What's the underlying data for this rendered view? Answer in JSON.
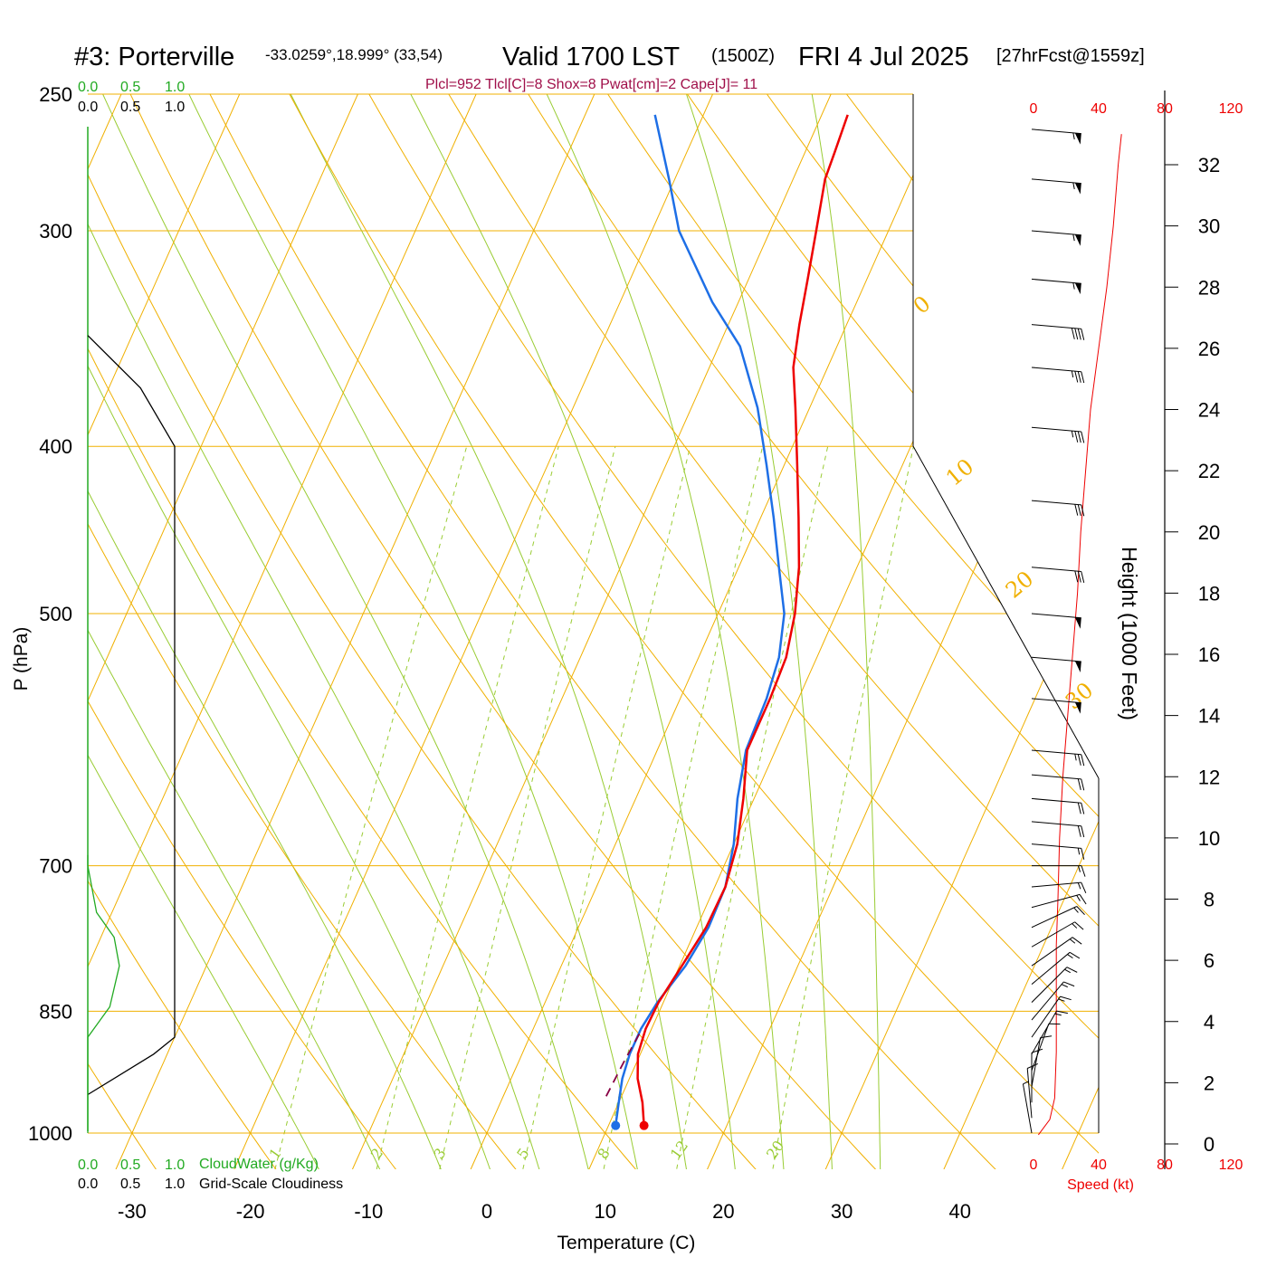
{
  "header": {
    "station": "#3: Porterville",
    "coords": "-33.0259°,18.999° (33,54)",
    "valid": "Valid 1700 LST",
    "utc": "(1500Z)",
    "date": "FRI 4 Jul 2025",
    "forecast": "[27hrFcst@1559z]"
  },
  "indices": "Plcl=952 Tlcl[C]=8 Shox=8 Pwat[cm]=2 Cape[J]= 11",
  "colors": {
    "isotherm": "#f0b000",
    "dry_adiabat": "#f0b000",
    "moist_adiabat": "#99cc33",
    "mixing_ratio": "#99cc33",
    "temperature": "#ee0000",
    "dewpoint": "#1e6fe6",
    "parcel": "#880044",
    "cloud_water": "#22aa22",
    "cloudiness": "#000000",
    "speed": "#ee0000"
  },
  "cloud_scale": {
    "cloudwater_ticks": [
      "0.0",
      "0.5",
      "1.0"
    ],
    "cloudiness_ticks": [
      "0.0",
      "0.5",
      "1.0"
    ],
    "cloudwater_label": "CloudWater (g/Kg)",
    "cloudiness_label": "Grid-Scale Cloudiness"
  },
  "speed_scale": {
    "ticks": [
      "0",
      "40",
      "80",
      "120"
    ],
    "label": "Speed (kt)"
  },
  "chart_data": {
    "type": "skew-t log-p sounding",
    "xlabel": "Temperature (C)",
    "ylabel": "P (hPa)",
    "y2label": "Height (1000 Feet)",
    "x_ticks": [
      -30,
      -20,
      -10,
      0,
      10,
      20,
      30,
      40
    ],
    "p_ticks": [
      250,
      300,
      400,
      500,
      700,
      850,
      1000
    ],
    "height_ticks": [
      0,
      2,
      4,
      6,
      8,
      10,
      12,
      14,
      16,
      18,
      20,
      22,
      24,
      26,
      28,
      30,
      32
    ],
    "isotherm_labels": [
      {
        "t": 10,
        "text": "10"
      },
      {
        "t": 0,
        "text": "0"
      },
      {
        "t": -10,
        "text": "-10"
      },
      {
        "t": -20,
        "text": "-20"
      },
      {
        "t": -30,
        "text": "-30"
      }
    ],
    "isotherm_labels_right": [
      {
        "t": 0,
        "text": "0"
      },
      {
        "t": 10,
        "text": "10"
      },
      {
        "t": 20,
        "text": "20"
      },
      {
        "t": 30,
        "text": "30"
      }
    ],
    "mixing_ratio_labels": [
      "1",
      "2",
      "3",
      "5",
      "8",
      "12",
      "20"
    ],
    "temperature": [
      {
        "p": 990,
        "t": 13.0
      },
      {
        "p": 960,
        "t": 12.0
      },
      {
        "p": 930,
        "t": 10.7
      },
      {
        "p": 900,
        "t": 9.8
      },
      {
        "p": 870,
        "t": 9.5
      },
      {
        "p": 840,
        "t": 9.6
      },
      {
        "p": 800,
        "t": 10.2
      },
      {
        "p": 760,
        "t": 10.8
      },
      {
        "p": 720,
        "t": 10.9
      },
      {
        "p": 680,
        "t": 10.3
      },
      {
        "p": 640,
        "t": 9.1
      },
      {
        "p": 600,
        "t": 7.6
      },
      {
        "p": 560,
        "t": 7.6
      },
      {
        "p": 530,
        "t": 7.4
      },
      {
        "p": 500,
        "t": 6.5
      },
      {
        "p": 470,
        "t": 5.1
      },
      {
        "p": 440,
        "t": 3.2
      },
      {
        "p": 410,
        "t": 1.1
      },
      {
        "p": 380,
        "t": -1.2
      },
      {
        "p": 360,
        "t": -2.9
      },
      {
        "p": 340,
        "t": -4.0
      },
      {
        "p": 320,
        "t": -5.0
      },
      {
        "p": 300,
        "t": -6.1
      },
      {
        "p": 280,
        "t": -7.3
      },
      {
        "p": 270,
        "t": -7.5
      },
      {
        "p": 257,
        "t": -7.8
      }
    ],
    "dewpoint": [
      {
        "p": 990,
        "t": 10.6
      },
      {
        "p": 960,
        "t": 10.0
      },
      {
        "p": 930,
        "t": 9.4
      },
      {
        "p": 900,
        "t": 9.1
      },
      {
        "p": 870,
        "t": 9.1
      },
      {
        "p": 840,
        "t": 9.5
      },
      {
        "p": 800,
        "t": 10.5
      },
      {
        "p": 760,
        "t": 11.0
      },
      {
        "p": 720,
        "t": 10.9
      },
      {
        "p": 680,
        "t": 10.0
      },
      {
        "p": 640,
        "t": 8.6
      },
      {
        "p": 600,
        "t": 7.5
      },
      {
        "p": 560,
        "t": 7.3
      },
      {
        "p": 530,
        "t": 6.8
      },
      {
        "p": 500,
        "t": 5.6
      },
      {
        "p": 470,
        "t": 3.4
      },
      {
        "p": 440,
        "t": 1.1
      },
      {
        "p": 410,
        "t": -1.5
      },
      {
        "p": 380,
        "t": -4.4
      },
      {
        "p": 350,
        "t": -8.2
      },
      {
        "p": 330,
        "t": -12.2
      },
      {
        "p": 300,
        "t": -17.7
      },
      {
        "p": 280,
        "t": -20.5
      },
      {
        "p": 257,
        "t": -24.1
      }
    ],
    "parcel": [
      {
        "p": 952,
        "t": 8.7
      },
      {
        "p": 910,
        "t": 8.9
      },
      {
        "p": 870,
        "t": 9.2
      }
    ],
    "cloudiness_profile": [
      {
        "p": 950,
        "v": 0.0
      },
      {
        "p": 900,
        "v": 0.75
      },
      {
        "p": 880,
        "v": 0.99
      },
      {
        "p": 400,
        "v": 0.99
      },
      {
        "p": 370,
        "v": 0.6
      },
      {
        "p": 345,
        "v": 0.0
      }
    ],
    "cloudwater_profile": [
      {
        "p": 1000,
        "v": 0.0
      },
      {
        "p": 880,
        "v": 0.0
      },
      {
        "p": 845,
        "v": 0.25
      },
      {
        "p": 800,
        "v": 0.36
      },
      {
        "p": 770,
        "v": 0.3
      },
      {
        "p": 745,
        "v": 0.1
      },
      {
        "p": 700,
        "v": 0.0
      },
      {
        "p": 690,
        "v": 0.0
      }
    ],
    "wind_speed_profile": [
      {
        "h": 0.3,
        "s": 3
      },
      {
        "h": 0.8,
        "s": 10
      },
      {
        "h": 1.5,
        "s": 13
      },
      {
        "h": 3.0,
        "s": 14
      },
      {
        "h": 5.0,
        "s": 14
      },
      {
        "h": 6.5,
        "s": 14
      },
      {
        "h": 8.0,
        "s": 15
      },
      {
        "h": 10.0,
        "s": 16
      },
      {
        "h": 12.0,
        "s": 18
      },
      {
        "h": 14.0,
        "s": 21
      },
      {
        "h": 16.0,
        "s": 24
      },
      {
        "h": 18.0,
        "s": 27
      },
      {
        "h": 20.0,
        "s": 29
      },
      {
        "h": 22.0,
        "s": 32
      },
      {
        "h": 24.0,
        "s": 35
      },
      {
        "h": 26.0,
        "s": 40
      },
      {
        "h": 28.0,
        "s": 45
      },
      {
        "h": 30.0,
        "s": 49
      },
      {
        "h": 32.0,
        "s": 52
      },
      {
        "h": 33.0,
        "s": 54
      }
    ],
    "wind_barbs": [
      {
        "p": 1000,
        "dir": 170,
        "spd": 5
      },
      {
        "p": 980,
        "dir": 175,
        "spd": 8
      },
      {
        "p": 960,
        "dir": 180,
        "spd": 10
      },
      {
        "p": 940,
        "dir": 190,
        "spd": 12
      },
      {
        "p": 920,
        "dir": 200,
        "spd": 12
      },
      {
        "p": 900,
        "dir": 210,
        "spd": 13
      },
      {
        "p": 880,
        "dir": 215,
        "spd": 13
      },
      {
        "p": 860,
        "dir": 220,
        "spd": 14
      },
      {
        "p": 840,
        "dir": 225,
        "spd": 14
      },
      {
        "p": 820,
        "dir": 230,
        "spd": 14
      },
      {
        "p": 800,
        "dir": 235,
        "spd": 15
      },
      {
        "p": 780,
        "dir": 240,
        "spd": 15
      },
      {
        "p": 760,
        "dir": 245,
        "spd": 15
      },
      {
        "p": 740,
        "dir": 255,
        "spd": 15
      },
      {
        "p": 720,
        "dir": 265,
        "spd": 15
      },
      {
        "p": 700,
        "dir": 270,
        "spd": 16
      },
      {
        "p": 680,
        "dir": 275,
        "spd": 17
      },
      {
        "p": 660,
        "dir": 275,
        "spd": 18
      },
      {
        "p": 640,
        "dir": 275,
        "spd": 20
      },
      {
        "p": 620,
        "dir": 275,
        "spd": 22
      },
      {
        "p": 600,
        "dir": 275,
        "spd": 25
      },
      {
        "p": 560,
        "dir": 275,
        "spd": 50
      },
      {
        "p": 530,
        "dir": 275,
        "spd": 50
      },
      {
        "p": 500,
        "dir": 275,
        "spd": 50
      },
      {
        "p": 470,
        "dir": 275,
        "spd": 30
      },
      {
        "p": 430,
        "dir": 275,
        "spd": 30
      },
      {
        "p": 390,
        "dir": 275,
        "spd": 35
      },
      {
        "p": 360,
        "dir": 275,
        "spd": 35
      },
      {
        "p": 340,
        "dir": 275,
        "spd": 40
      },
      {
        "p": 320,
        "dir": 275,
        "spd": 55
      },
      {
        "p": 300,
        "dir": 275,
        "spd": 55
      },
      {
        "p": 280,
        "dir": 275,
        "spd": 55
      },
      {
        "p": 262,
        "dir": 275,
        "spd": 55
      }
    ]
  }
}
